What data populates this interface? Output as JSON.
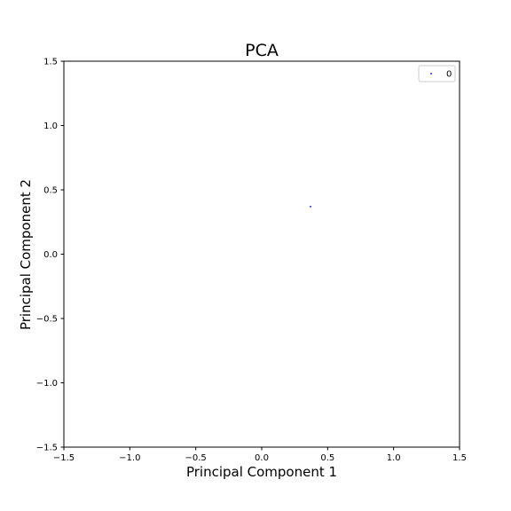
{
  "chart_data": {
    "type": "scatter",
    "title": "PCA",
    "xlabel": "Principal Component 1",
    "ylabel": "Principal Component 2",
    "xlim": [
      -1.5,
      1.5
    ],
    "ylim": [
      -1.5,
      1.5
    ],
    "xticks": [
      "−1.5",
      "−1.0",
      "−0.5",
      "0.0",
      "0.5",
      "1.0",
      "1.5"
    ],
    "yticks": [
      "−1.5",
      "−1.0",
      "−0.5",
      "0.0",
      "0.5",
      "1.0",
      "1.5"
    ],
    "grid": false,
    "legend_position": "top-right",
    "series": [
      {
        "name": "0",
        "color": "#0000ff",
        "points": [
          {
            "x": 0.37,
            "y": 0.37
          }
        ]
      }
    ]
  }
}
